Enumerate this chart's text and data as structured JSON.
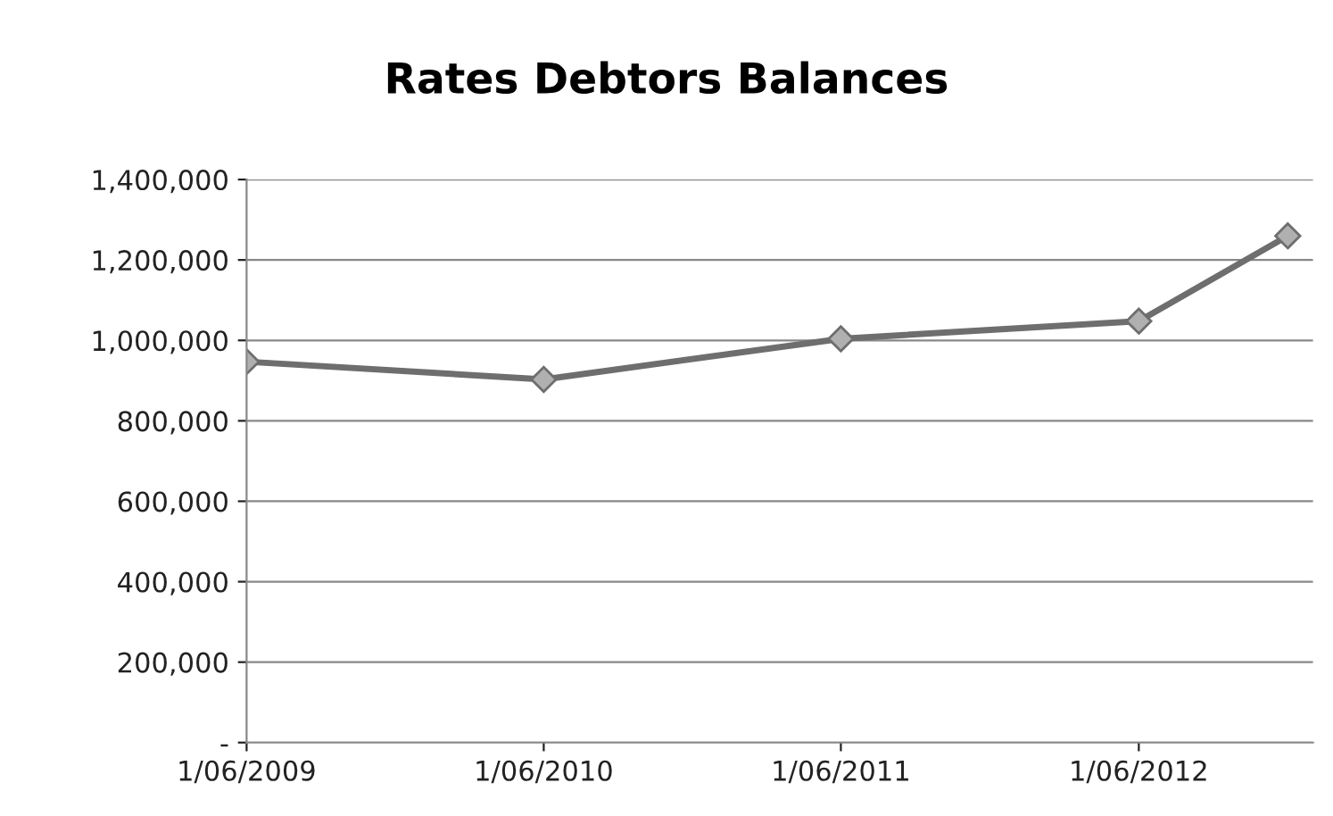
{
  "chart_data": {
    "type": "line",
    "title": "Rates Debtors Balances",
    "x": [
      "2009-06-01",
      "2010-06-01",
      "2011-06-01",
      "2012-06-01",
      "2012-12-01"
    ],
    "series": [
      {
        "color": "#6e6e6e",
        "values": [
          947000,
          903000,
          1004000,
          1048000,
          1260000
        ]
      }
    ],
    "xlim": [
      "2009-06-01",
      "2013-01-01"
    ],
    "xticks": [
      {
        "value": "2009-06-01",
        "label": "1/06/2009"
      },
      {
        "value": "2010-06-01",
        "label": "1/06/2010"
      },
      {
        "value": "2011-06-01",
        "label": "1/06/2011"
      },
      {
        "value": "2012-06-01",
        "label": "1/06/2012"
      }
    ],
    "ylim": [
      0,
      1400000
    ],
    "yticks": [
      {
        "value": 0,
        "label": "-"
      },
      {
        "value": 200000,
        "label": "200,000"
      },
      {
        "value": 400000,
        "label": "400,000"
      },
      {
        "value": 600000,
        "label": "600,000"
      },
      {
        "value": 800000,
        "label": "800,000"
      },
      {
        "value": 1000000,
        "label": "1,000,000"
      },
      {
        "value": 1200000,
        "label": "1,200,000"
      },
      {
        "value": 1400000,
        "label": "1,400,000"
      }
    ],
    "grid": "y",
    "marker": "diamond",
    "line_style": "solid"
  }
}
